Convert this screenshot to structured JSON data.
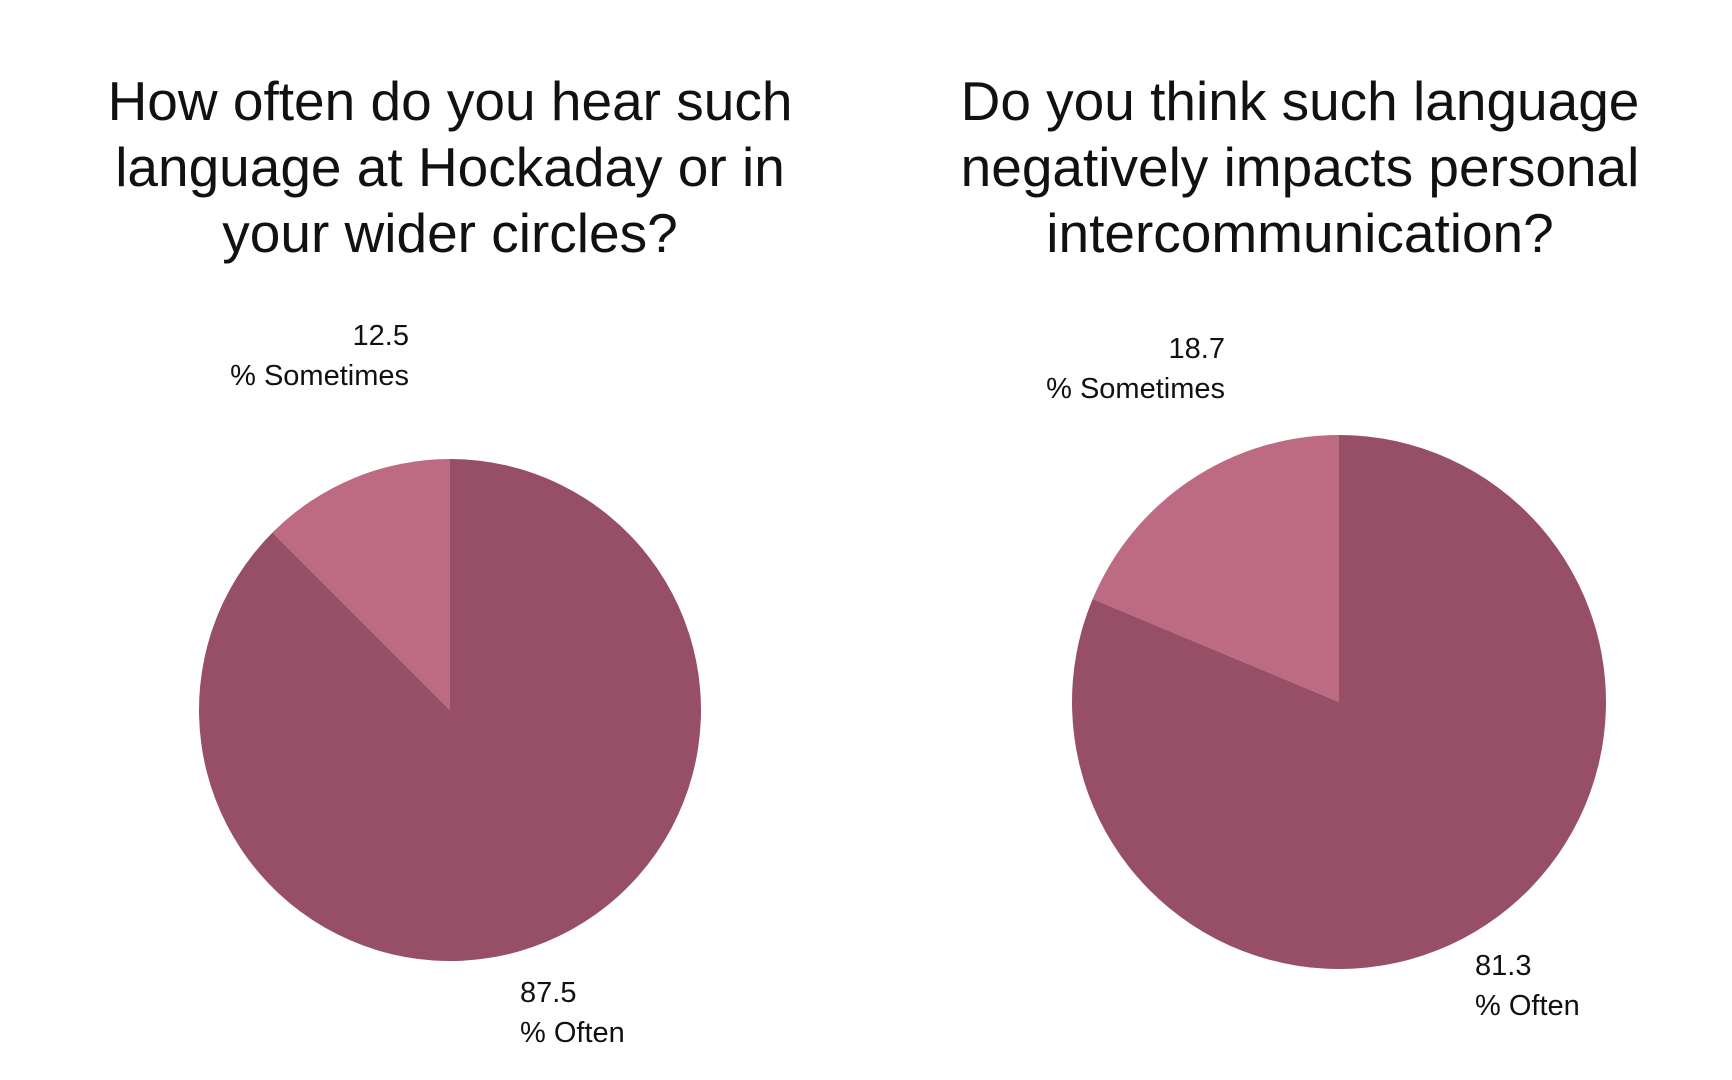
{
  "colors": {
    "often": "#964f66",
    "sometimes": "#bc6b83",
    "label_text": "#111111",
    "background": "#ffffff"
  },
  "chart_data": [
    {
      "type": "pie",
      "title": "How often do you hear such language at Hockaday or in your wider circles?",
      "slices": [
        {
          "label": "% Sometimes",
          "value": 12.5,
          "value_label": "12.5",
          "color": "#bc6b83"
        },
        {
          "label": "% Often",
          "value": 87.5,
          "value_label": "87.5",
          "color": "#964f66"
        }
      ],
      "legend": "none"
    },
    {
      "type": "pie",
      "title": "Do you think such language negatively impacts personal intercommunication?",
      "slices": [
        {
          "label": "% Sometimes",
          "value": 18.7,
          "value_label": "18.7",
          "color": "#bc6b83"
        },
        {
          "label": "% Often",
          "value": 81.3,
          "value_label": "81.3",
          "color": "#964f66"
        }
      ],
      "legend": "none"
    }
  ]
}
